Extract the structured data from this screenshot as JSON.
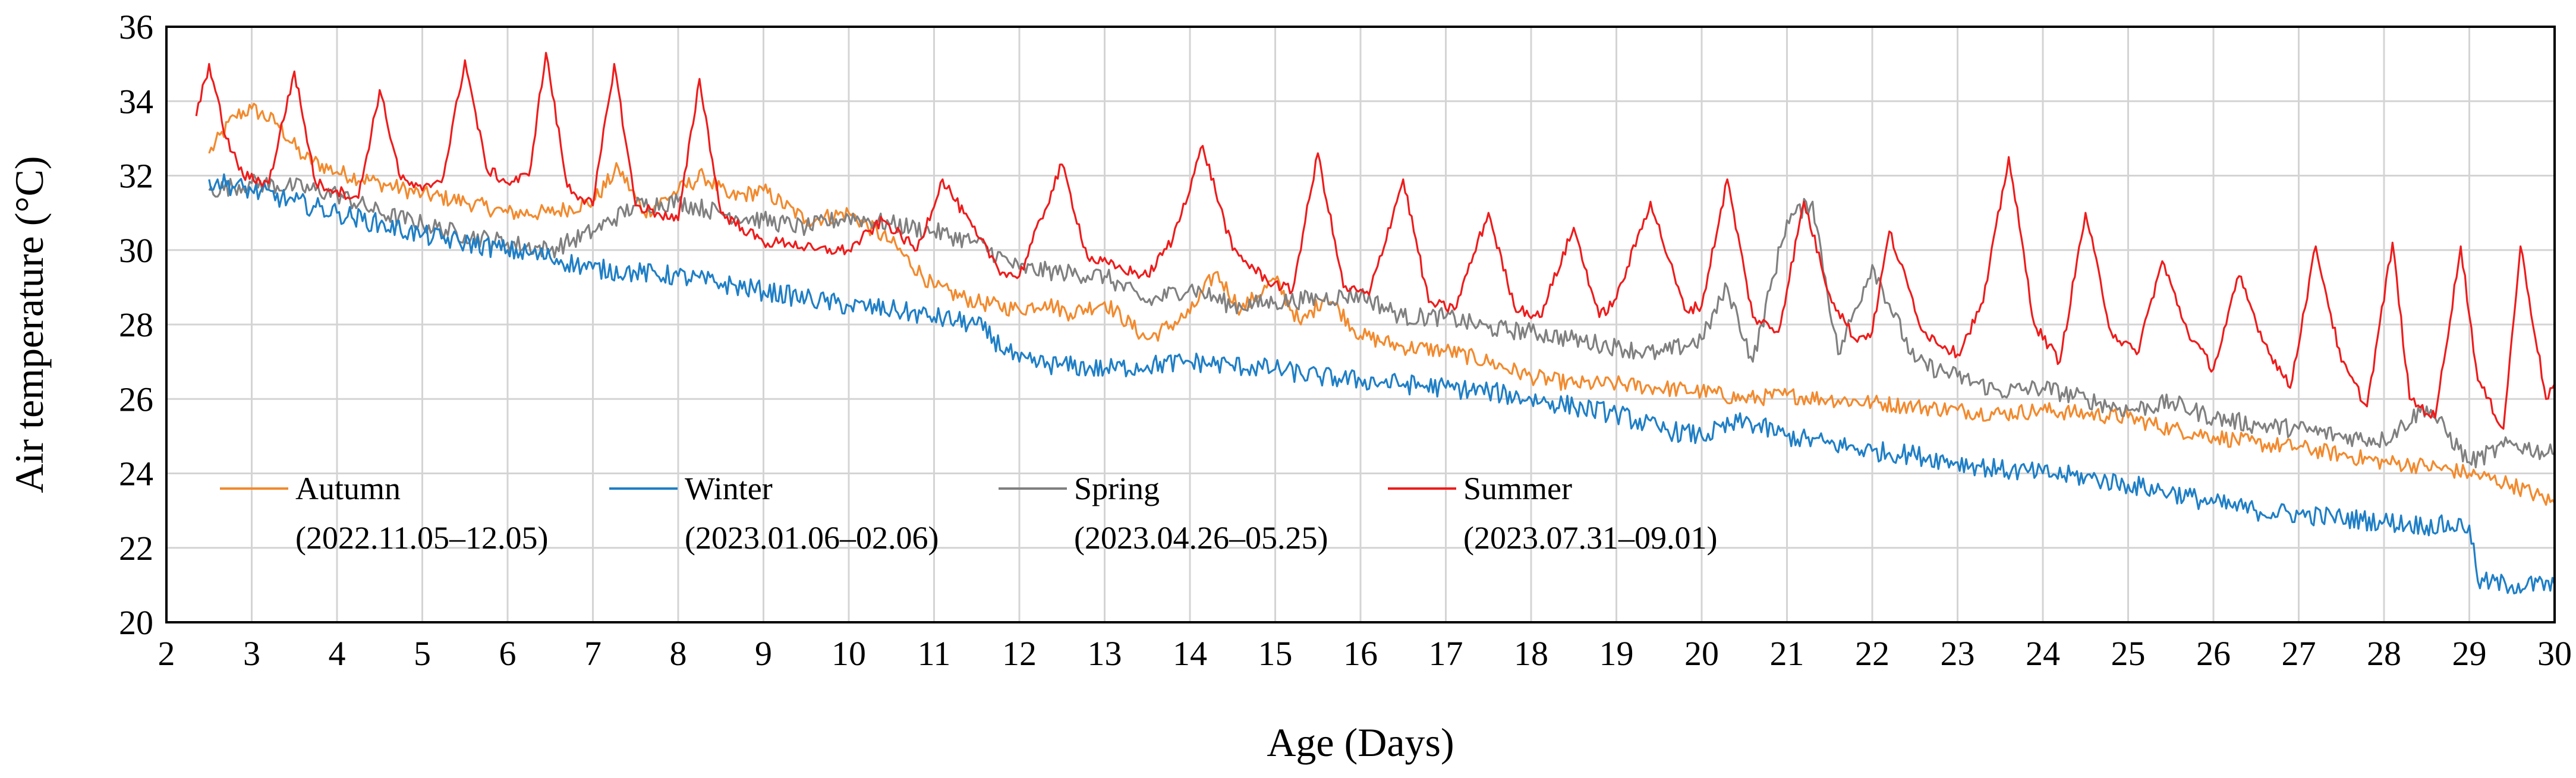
{
  "chart_data": {
    "type": "line",
    "title": "",
    "xlabel": "Age (Days)",
    "ylabel": "Air temperature (°C)",
    "xlim": [
      2,
      30
    ],
    "ylim": [
      20,
      36
    ],
    "x_ticks": [
      2,
      3,
      4,
      5,
      6,
      7,
      8,
      9,
      10,
      11,
      12,
      13,
      14,
      15,
      16,
      17,
      18,
      19,
      20,
      21,
      22,
      23,
      24,
      25,
      26,
      27,
      28,
      29,
      30
    ],
    "y_ticks": [
      20,
      22,
      24,
      26,
      28,
      30,
      32,
      34,
      36
    ],
    "grid": true,
    "legend_position": "bottom-left, inside plot",
    "series": [
      {
        "name": "Autumn",
        "period": "(2022.11.05–12.05)",
        "color": "#f28a2e",
        "x": [
          2.5,
          2.8,
          3.0,
          3.3,
          3.6,
          4.0,
          4.5,
          5.0,
          5.5,
          6.0,
          6.5,
          7.0,
          7.3,
          7.6,
          8.0,
          8.3,
          8.6,
          9.0,
          9.5,
          10.0,
          10.5,
          11.0,
          11.5,
          12.0,
          12.3,
          12.6,
          13.0,
          13.5,
          14.0,
          14.3,
          14.6,
          15.0,
          15.3,
          15.6,
          16.0,
          16.5,
          17.0,
          17.5,
          18.0,
          18.5,
          19.0,
          19.5,
          20.0,
          20.5,
          21.0,
          21.5,
          22.0,
          22.5,
          23.0,
          23.5,
          24.0,
          24.5,
          25.0,
          25.5,
          26.0,
          26.5,
          27.0,
          27.5,
          28.0,
          28.5,
          29.0,
          29.5,
          30.0
        ],
        "y": [
          32.6,
          33.6,
          33.8,
          33.4,
          32.5,
          32.1,
          31.8,
          31.5,
          31.3,
          31.0,
          31.0,
          31.3,
          32.2,
          31.0,
          31.6,
          32.0,
          31.4,
          31.6,
          30.8,
          31.0,
          30.2,
          29.0,
          28.6,
          28.4,
          28.6,
          28.3,
          28.6,
          27.6,
          28.3,
          29.4,
          28.4,
          29.2,
          28.0,
          28.8,
          27.7,
          27.4,
          27.3,
          27.0,
          26.6,
          26.4,
          26.4,
          26.3,
          26.2,
          26.0,
          26.1,
          26.0,
          25.9,
          25.8,
          25.7,
          25.6,
          25.7,
          25.6,
          25.5,
          25.2,
          25.0,
          24.8,
          24.7,
          24.5,
          24.3,
          24.2,
          24.0,
          23.7,
          23.2
        ]
      },
      {
        "name": "Winter",
        "period": "(2023.01.06–02.06)",
        "color": "#1f7fc6",
        "x": [
          2.5,
          3.0,
          3.5,
          4.0,
          4.5,
          5.0,
          5.5,
          6.0,
          6.5,
          7.0,
          7.5,
          8.0,
          8.5,
          9.0,
          9.5,
          10.0,
          10.5,
          11.0,
          11.5,
          12.0,
          12.5,
          13.0,
          13.5,
          14.0,
          14.5,
          15.0,
          15.5,
          16.0,
          16.5,
          17.0,
          17.5,
          18.0,
          18.5,
          19.0,
          19.5,
          20.0,
          20.5,
          21.0,
          21.5,
          22.0,
          22.5,
          23.0,
          23.5,
          24.0,
          24.5,
          25.0,
          25.5,
          26.0,
          26.5,
          27.0,
          27.5,
          28.0,
          28.5,
          29.0,
          29.1,
          29.5,
          30.0
        ],
        "y": [
          31.9,
          31.6,
          31.3,
          31.0,
          30.7,
          30.4,
          30.2,
          30.0,
          29.8,
          29.5,
          29.4,
          29.3,
          29.1,
          28.9,
          28.7,
          28.5,
          28.4,
          28.2,
          28.0,
          27.0,
          26.9,
          26.8,
          26.9,
          27.0,
          26.9,
          26.8,
          26.6,
          26.5,
          26.4,
          26.3,
          26.2,
          26.0,
          25.8,
          25.6,
          25.2,
          25.0,
          25.4,
          25.0,
          24.8,
          24.6,
          24.5,
          24.3,
          24.1,
          24.0,
          23.9,
          23.7,
          23.5,
          23.2,
          23.0,
          22.9,
          22.8,
          22.7,
          22.6,
          22.6,
          21.1,
          21.0,
          21.0
        ]
      },
      {
        "name": "Spring",
        "period": "(2023.04.26–05.25)",
        "color": "#808080",
        "x": [
          2.5,
          3.0,
          3.5,
          4.0,
          4.5,
          5.0,
          5.5,
          6.0,
          6.5,
          7.0,
          7.5,
          8.0,
          8.5,
          9.0,
          9.5,
          10.0,
          10.5,
          11.0,
          11.5,
          12.0,
          12.5,
          13.0,
          13.5,
          14.0,
          14.5,
          15.0,
          15.5,
          16.0,
          16.5,
          17.0,
          17.5,
          18.0,
          18.5,
          19.0,
          19.5,
          20.0,
          20.3,
          20.6,
          21.0,
          21.3,
          21.6,
          22.0,
          22.5,
          23.0,
          23.5,
          24.0,
          24.5,
          25.0,
          25.5,
          26.0,
          26.5,
          27.0,
          27.5,
          28.0,
          28.5,
          29.0,
          29.5,
          30.0
        ],
        "y": [
          31.6,
          31.8,
          31.7,
          31.5,
          31.0,
          30.7,
          30.4,
          30.2,
          30.0,
          30.5,
          31.2,
          31.3,
          31.0,
          30.8,
          30.6,
          30.9,
          30.7,
          30.5,
          30.2,
          29.5,
          29.4,
          29.3,
          28.6,
          29.0,
          28.5,
          28.6,
          28.7,
          28.8,
          28.2,
          28.2,
          27.9,
          27.8,
          27.6,
          27.4,
          27.2,
          27.6,
          29.0,
          27.0,
          30.8,
          31.3,
          27.2,
          29.6,
          27.0,
          26.6,
          26.2,
          26.3,
          26.0,
          25.7,
          25.9,
          25.5,
          25.3,
          25.2,
          25.0,
          24.9,
          25.8,
          24.3,
          24.8,
          24.5
        ]
      },
      {
        "name": "Summer",
        "period": "(2023.07.31–09.01)",
        "color": "#ee1c1c",
        "x": [
          2.35,
          2.5,
          2.7,
          2.9,
          3.2,
          3.5,
          3.75,
          4.0,
          4.25,
          4.5,
          4.75,
          5.0,
          5.25,
          5.5,
          5.75,
          6.0,
          6.25,
          6.45,
          6.7,
          7.0,
          7.25,
          7.5,
          7.75,
          8.0,
          8.25,
          8.5,
          8.75,
          9.0,
          9.3,
          9.6,
          10.0,
          10.4,
          10.8,
          11.1,
          11.5,
          11.8,
          12.0,
          12.5,
          12.8,
          13.2,
          13.5,
          13.8,
          14.15,
          14.5,
          14.9,
          15.2,
          15.5,
          15.8,
          16.1,
          16.5,
          16.8,
          17.1,
          17.5,
          17.8,
          18.1,
          18.5,
          18.8,
          19.0,
          19.4,
          19.8,
          20.0,
          20.3,
          20.6,
          20.9,
          21.2,
          21.5,
          21.8,
          22.0,
          22.2,
          22.6,
          23.0,
          23.3,
          23.6,
          23.9,
          24.2,
          24.5,
          24.8,
          25.1,
          25.4,
          25.7,
          26.0,
          26.3,
          26.6,
          26.9,
          27.2,
          27.5,
          27.8,
          28.1,
          28.3,
          28.6,
          28.9,
          29.1,
          29.4,
          29.6,
          29.9,
          30.0
        ],
        "y": [
          33.6,
          35.0,
          33.0,
          32.0,
          31.8,
          34.8,
          31.8,
          31.6,
          31.4,
          34.3,
          31.9,
          31.6,
          32.0,
          35.1,
          32.2,
          31.8,
          32.0,
          35.3,
          31.7,
          31.2,
          35.0,
          31.2,
          31.0,
          30.8,
          34.6,
          31.0,
          30.6,
          30.2,
          30.2,
          30.0,
          30.0,
          30.8,
          30.0,
          31.9,
          30.4,
          29.4,
          29.3,
          32.3,
          29.8,
          29.5,
          29.3,
          30.3,
          32.8,
          30.0,
          29.2,
          28.9,
          32.6,
          29.0,
          28.8,
          31.9,
          28.6,
          28.4,
          31.0,
          28.5,
          28.2,
          30.6,
          28.2,
          28.7,
          31.3,
          28.4,
          28.5,
          31.9,
          28.2,
          27.8,
          31.3,
          28.8,
          27.6,
          27.8,
          30.5,
          27.8,
          27.2,
          28.6,
          32.5,
          28.0,
          27.0,
          31.0,
          27.8,
          27.2,
          29.7,
          27.8,
          26.8,
          29.3,
          27.5,
          26.3,
          30.1,
          27.0,
          25.8,
          30.2,
          26.0,
          25.5,
          30.1,
          26.5,
          25.2,
          30.1,
          26.0,
          26.4
        ]
      }
    ]
  }
}
